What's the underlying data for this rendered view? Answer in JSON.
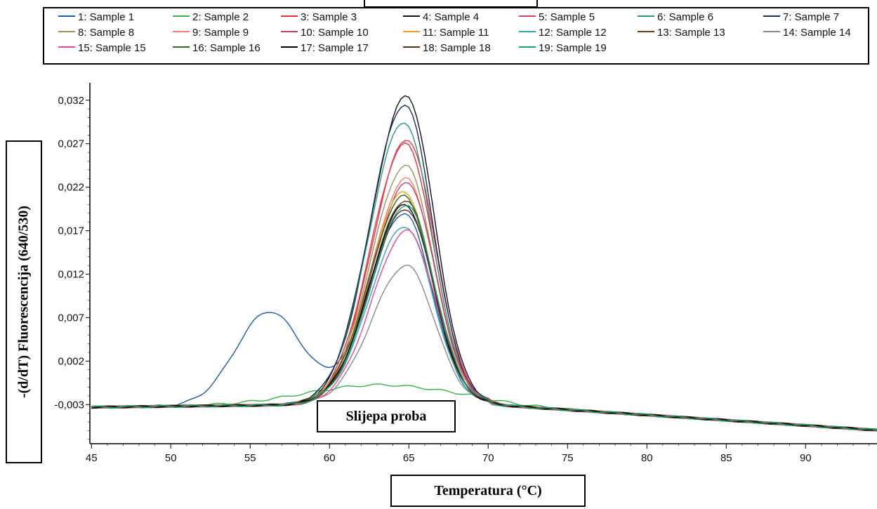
{
  "chart_data": {
    "type": "line",
    "xlabel": "Temperatura (°C)",
    "ylabel": "-(d/dT) Fluorescencija (640/530)",
    "xlim": [
      44.9,
      94.5
    ],
    "ylim": [
      -0.0075,
      0.034
    ],
    "x_ticks": [
      45,
      50,
      55,
      60,
      65,
      70,
      75,
      80,
      85,
      90
    ],
    "y_ticks": [
      -0.003,
      0.002,
      0.007,
      0.012,
      0.017,
      0.022,
      0.027,
      0.032
    ],
    "y_tick_labels": [
      "-0,003",
      "0,002",
      "0,007",
      "0,012",
      "0,017",
      "0,022",
      "0,027",
      "0,032"
    ],
    "grid": false,
    "legend_position": "top",
    "annotation": "Slijepa proba",
    "series": [
      {
        "name": "1: Sample 1",
        "color": "#1f5aa8",
        "peak": 0.019
      },
      {
        "name": "2: Sample 2",
        "color": "#3cb04a",
        "peak": -0.001
      },
      {
        "name": "3: Sample 3",
        "color": "#e8303a",
        "peak": 0.027
      },
      {
        "name": "4: Sample 4",
        "color": "#111111",
        "peak": 0.0325
      },
      {
        "name": "5: Sample 5",
        "color": "#e83a5a",
        "peak": 0.0275
      },
      {
        "name": "6: Sample 6",
        "color": "#2a9a7a",
        "peak": 0.0295
      },
      {
        "name": "7: Sample 7",
        "color": "#1a2a5a",
        "peak": 0.0315
      },
      {
        "name": "8: Sample 8",
        "color": "#a09060",
        "peak": 0.0245
      },
      {
        "name": "9: Sample 9",
        "color": "#f08060",
        "peak": 0.023
      },
      {
        "name": "10: Sample 10",
        "color": "#c04070",
        "peak": 0.0225
      },
      {
        "name": "11: Sample 11",
        "color": "#e8a020",
        "peak": 0.0215
      },
      {
        "name": "12: Sample 12",
        "color": "#3aa0c0",
        "peak": 0.0175
      },
      {
        "name": "13: Sample 13",
        "color": "#6a3a1a",
        "peak": 0.0205
      },
      {
        "name": "14: Sample 14",
        "color": "#888888",
        "peak": 0.013
      },
      {
        "name": "15: Sample 15",
        "color": "#e04a90",
        "peak": 0.017
      },
      {
        "name": "16: Sample 16",
        "color": "#2a6a2a",
        "peak": 0.021
      },
      {
        "name": "17: Sample 17",
        "color": "#000000",
        "peak": 0.02
      },
      {
        "name": "18: Sample 18",
        "color": "#5a3020",
        "peak": 0.0195
      },
      {
        "name": "19: Sample 19",
        "color": "#1aa070",
        "peak": 0.02
      }
    ],
    "sample1_extra_peak": {
      "x": 56.2,
      "y": 0.0077
    }
  }
}
